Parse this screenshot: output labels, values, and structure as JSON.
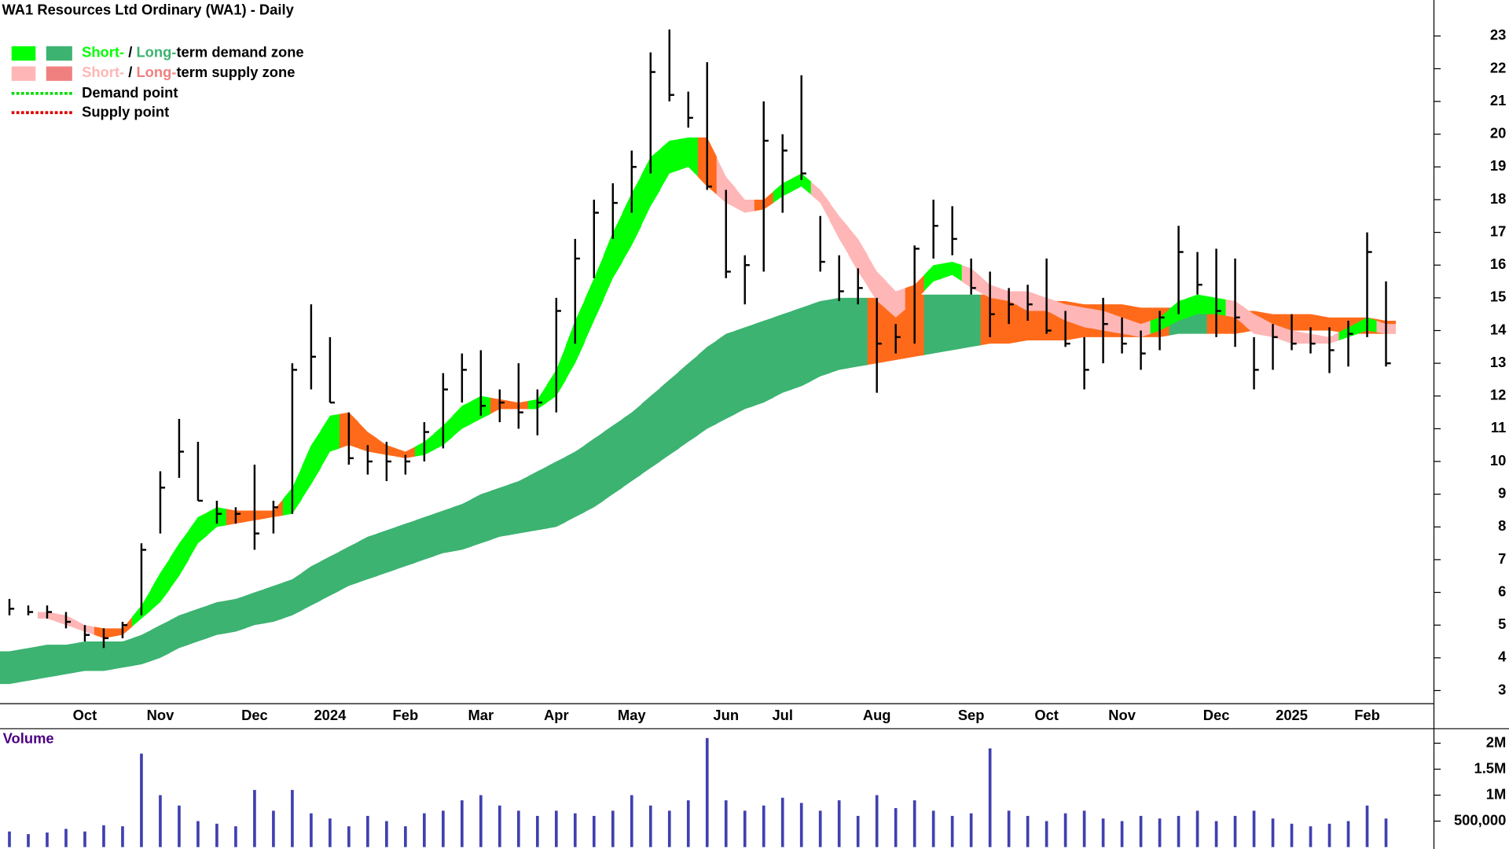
{
  "chart_data": [
    {
      "type": "ohlc",
      "title": "WA1 Resources Ltd Ordinary (WA1) - Daily",
      "categories": [
        null,
        null,
        null,
        null,
        "Oct",
        null,
        null,
        null,
        "Nov",
        null,
        null,
        null,
        null,
        "Dec",
        null,
        null,
        null,
        "2024",
        null,
        null,
        null,
        "Feb",
        null,
        null,
        null,
        "Mar",
        null,
        null,
        null,
        "Apr",
        null,
        null,
        null,
        "May",
        null,
        null,
        null,
        null,
        "Jun",
        null,
        null,
        "Jul",
        null,
        null,
        null,
        null,
        "Aug",
        null,
        null,
        null,
        null,
        "Sep",
        null,
        null,
        null,
        "Oct",
        null,
        null,
        null,
        "Nov",
        null,
        null,
        null,
        null,
        "Dec",
        null,
        null,
        null,
        "2025",
        null,
        null,
        null,
        "Feb",
        null
      ],
      "high": [
        5.8,
        5.6,
        5.6,
        5.4,
        5.0,
        4.9,
        5.1,
        7.5,
        9.7,
        11.3,
        10.6,
        8.8,
        8.6,
        9.9,
        8.8,
        13.0,
        14.8,
        13.8,
        11.5,
        10.5,
        10.6,
        10.2,
        11.2,
        12.7,
        13.3,
        13.4,
        12.2,
        13.0,
        12.2,
        15.0,
        16.8,
        18.0,
        18.5,
        19.5,
        22.5,
        23.2,
        21.3,
        22.2,
        18.3,
        16.3,
        21.0,
        20.0,
        21.8,
        17.5,
        16.3,
        15.9,
        15.0,
        14.2,
        16.6,
        18.0,
        17.8,
        16.2,
        15.8,
        15.3,
        15.4,
        16.2,
        14.6,
        13.8,
        15.0,
        14.4,
        14.0,
        14.6,
        17.2,
        16.4,
        16.5,
        16.2,
        13.8,
        14.2,
        14.5,
        14.1,
        14.1,
        14.3,
        17.0,
        15.5
      ],
      "low": [
        5.3,
        5.3,
        5.2,
        4.9,
        4.5,
        4.3,
        4.6,
        5.3,
        7.8,
        9.5,
        8.8,
        8.1,
        8.1,
        7.3,
        7.8,
        8.4,
        12.2,
        11.8,
        9.9,
        9.6,
        9.4,
        9.6,
        10.0,
        10.4,
        11.8,
        11.4,
        11.2,
        11.0,
        10.8,
        11.5,
        13.6,
        15.6,
        16.8,
        17.6,
        18.8,
        21.0,
        20.2,
        18.3,
        15.6,
        14.8,
        15.8,
        17.6,
        18.6,
        15.8,
        14.9,
        14.8,
        12.1,
        13.3,
        13.6,
        16.2,
        16.3,
        15.1,
        13.8,
        14.2,
        14.3,
        13.9,
        13.5,
        12.2,
        13.0,
        13.3,
        12.8,
        13.4,
        14.5,
        15.1,
        13.8,
        13.5,
        12.2,
        12.8,
        13.4,
        13.3,
        12.7,
        12.9,
        13.8,
        12.9
      ],
      "close": [
        5.5,
        5.4,
        5.4,
        5.1,
        4.7,
        4.6,
        5.0,
        7.3,
        9.2,
        10.3,
        8.8,
        8.4,
        8.4,
        7.8,
        8.6,
        12.8,
        13.2,
        11.8,
        10.1,
        10.0,
        10.0,
        10.0,
        10.9,
        12.2,
        12.8,
        11.7,
        11.8,
        11.5,
        11.8,
        14.6,
        16.2,
        17.6,
        17.9,
        19.0,
        21.9,
        21.2,
        20.5,
        18.4,
        15.8,
        16.0,
        19.8,
        19.5,
        18.8,
        16.1,
        15.2,
        15.3,
        13.6,
        13.8,
        16.5,
        17.2,
        16.8,
        15.3,
        14.5,
        14.8,
        14.8,
        14.0,
        13.6,
        12.8,
        14.2,
        13.6,
        13.3,
        14.4,
        16.4,
        15.4,
        14.6,
        14.4,
        12.8,
        13.8,
        13.6,
        13.6,
        13.4,
        13.9,
        16.4,
        13.0
      ],
      "candle_color": "#000000",
      "long_term_zone": {
        "upper": [
          4.2,
          4.3,
          4.4,
          4.4,
          4.5,
          4.5,
          4.5,
          4.7,
          5.0,
          5.3,
          5.5,
          5.7,
          5.8,
          6.0,
          6.2,
          6.4,
          6.8,
          7.1,
          7.4,
          7.7,
          7.9,
          8.1,
          8.3,
          8.5,
          8.7,
          9.0,
          9.2,
          9.4,
          9.7,
          10.0,
          10.3,
          10.7,
          11.1,
          11.5,
          12.0,
          12.5,
          13.0,
          13.5,
          13.9,
          14.1,
          14.3,
          14.5,
          14.7,
          14.9,
          15.0,
          15.0,
          15.0,
          15.0,
          15.1,
          15.1,
          15.1,
          15.1,
          15.1,
          15.0,
          15.0,
          14.9,
          14.9,
          14.8,
          14.8,
          14.8,
          14.7,
          14.7,
          14.7,
          14.7,
          14.6,
          14.6,
          14.6,
          14.5,
          14.5,
          14.5,
          14.4,
          14.4,
          14.4,
          14.3
        ],
        "lower": [
          3.2,
          3.3,
          3.4,
          3.5,
          3.6,
          3.6,
          3.7,
          3.8,
          4.0,
          4.3,
          4.5,
          4.7,
          4.8,
          5.0,
          5.1,
          5.3,
          5.6,
          5.9,
          6.2,
          6.4,
          6.6,
          6.8,
          7.0,
          7.2,
          7.3,
          7.5,
          7.7,
          7.8,
          7.9,
          8.0,
          8.3,
          8.6,
          9.0,
          9.4,
          9.8,
          10.2,
          10.6,
          11.0,
          11.3,
          11.6,
          11.8,
          12.1,
          12.3,
          12.6,
          12.8,
          12.9,
          13.0,
          13.1,
          13.2,
          13.3,
          13.4,
          13.5,
          13.6,
          13.6,
          13.7,
          13.7,
          13.7,
          13.8,
          13.8,
          13.8,
          13.8,
          13.8,
          13.9,
          13.9,
          13.9,
          13.9,
          14.0,
          14.0,
          14.0,
          14.0,
          14.0,
          13.9,
          13.9,
          13.9
        ],
        "colors": [
          "#3cb371",
          "#3cb371",
          "#3cb371",
          "#3cb371",
          "#3cb371",
          "#3cb371",
          "#3cb371",
          "#3cb371",
          "#3cb371",
          "#3cb371",
          "#3cb371",
          "#3cb371",
          "#3cb371",
          "#3cb371",
          "#3cb371",
          "#3cb371",
          "#3cb371",
          "#3cb371",
          "#3cb371",
          "#3cb371",
          "#3cb371",
          "#3cb371",
          "#3cb371",
          "#3cb371",
          "#3cb371",
          "#3cb371",
          "#3cb371",
          "#3cb371",
          "#3cb371",
          "#3cb371",
          "#3cb371",
          "#3cb371",
          "#3cb371",
          "#3cb371",
          "#3cb371",
          "#3cb371",
          "#3cb371",
          "#3cb371",
          "#3cb371",
          "#3cb371",
          "#3cb371",
          "#3cb371",
          "#3cb371",
          "#3cb371",
          "#3cb371",
          "#3cb371",
          "#ff6a1a",
          "#ff6a1a",
          "#ff6a1a",
          "#3cb371",
          "#3cb371",
          "#3cb371",
          "#ff6a1a",
          "#ff6a1a",
          "#ff6a1a",
          "#ff6a1a",
          "#ff6a1a",
          "#ff6a1a",
          "#ff6a1a",
          "#ff6a1a",
          "#ff6a1a",
          "#ff6a1a",
          "#3cb371",
          "#3cb371",
          "#ff6a1a",
          "#ff6a1a",
          "#ff6a1a",
          "#ff6a1a",
          "#ff6a1a",
          "#ff6a1a",
          "#ff6a1a",
          "#ff6a1a",
          "#ff6a1a",
          "#ff6a1a"
        ]
      },
      "short_term_zone": {
        "upper": [
          null,
          null,
          5.4,
          5.3,
          5.0,
          4.9,
          4.9,
          5.6,
          6.6,
          7.5,
          8.3,
          8.6,
          8.5,
          8.5,
          8.5,
          9.2,
          10.5,
          11.4,
          11.5,
          10.9,
          10.5,
          10.3,
          10.6,
          11.1,
          11.7,
          12.0,
          11.9,
          11.8,
          11.9,
          12.8,
          14.3,
          15.6,
          17.0,
          18.2,
          19.3,
          19.8,
          19.9,
          19.9,
          18.7,
          18.0,
          18.0,
          18.5,
          18.8,
          18.3,
          17.5,
          16.8,
          15.8,
          15.2,
          15.4,
          16.0,
          16.1,
          15.9,
          15.4,
          15.2,
          15.2,
          15.0,
          14.8,
          14.7,
          14.6,
          14.4,
          14.2,
          14.4,
          14.9,
          15.1,
          15.0,
          14.9,
          14.5,
          14.2,
          14.0,
          13.9,
          13.8,
          14.1,
          14.4,
          14.2
        ],
        "lower": [
          null,
          null,
          5.2,
          5.0,
          4.8,
          4.6,
          4.7,
          5.2,
          5.7,
          6.5,
          7.5,
          8.0,
          8.1,
          8.2,
          8.3,
          8.4,
          9.3,
          10.3,
          10.5,
          10.3,
          10.2,
          10.1,
          10.2,
          10.5,
          11.0,
          11.3,
          11.6,
          11.6,
          11.6,
          12.0,
          13.0,
          14.3,
          15.6,
          16.6,
          17.8,
          18.8,
          19.0,
          18.4,
          17.9,
          17.6,
          17.7,
          18.1,
          18.4,
          17.9,
          16.8,
          15.8,
          14.9,
          14.4,
          14.9,
          15.5,
          15.7,
          15.3,
          15.0,
          14.9,
          14.6,
          14.6,
          14.3,
          14.1,
          14.0,
          13.9,
          13.8,
          14.0,
          14.3,
          14.5,
          14.5,
          14.4,
          13.9,
          13.8,
          13.6,
          13.6,
          13.6,
          13.8,
          14.0,
          13.9
        ],
        "colors": [
          null,
          null,
          "#ffb6b6",
          "#ffb6b6",
          "#ffb6b6",
          "#ff6a1a",
          "#ff6a1a",
          "#00ff00",
          "#00ff00",
          "#00ff00",
          "#00ff00",
          "#00ff00",
          "#ff6a1a",
          "#ff6a1a",
          "#ff6a1a",
          "#00ff00",
          "#00ff00",
          "#00ff00",
          "#ff6a1a",
          "#ff6a1a",
          "#ff6a1a",
          "#ff6a1a",
          "#00ff00",
          "#00ff00",
          "#00ff00",
          "#00ff00",
          "#ff6a1a",
          "#ff6a1a",
          "#00ff00",
          "#00ff00",
          "#00ff00",
          "#00ff00",
          "#00ff00",
          "#00ff00",
          "#00ff00",
          "#00ff00",
          "#00ff00",
          "#ff6a1a",
          "#ffb6b6",
          "#ffb6b6",
          "#ff6a1a",
          "#00ff00",
          "#00ff00",
          "#ffb6b6",
          "#ffb6b6",
          "#ffb6b6",
          "#ffb6b6",
          "#ffb6b6",
          "#ff6a1a",
          "#00ff00",
          "#00ff00",
          "#ffb6b6",
          "#ffb6b6",
          "#ffb6b6",
          "#ffb6b6",
          "#ffb6b6",
          "#ffb6b6",
          "#ffb6b6",
          "#ffb6b6",
          "#ffb6b6",
          "#ffb6b6",
          "#00ff00",
          "#00ff00",
          "#00ff00",
          "#00ff00",
          "#ffb6b6",
          "#ffb6b6",
          "#ffb6b6",
          "#ffb6b6",
          "#ffb6b6",
          "#ffb6b6",
          "#00ff00",
          "#00ff00",
          "#ffb6b6"
        ]
      },
      "ylim": [
        2.6,
        24.1
      ],
      "yticks": [
        3,
        4,
        5,
        6,
        7,
        8,
        9,
        10,
        11,
        12,
        13,
        14,
        15,
        16,
        17,
        18,
        19,
        20,
        21,
        22,
        23
      ],
      "legend": [
        {
          "swatches": [
            "#00ff00",
            "#3cb371"
          ],
          "parts": [
            {
              "text": "Short-",
              "color": "#00ff00"
            },
            {
              "text": " / ",
              "color": "#000000"
            },
            {
              "text": "Long-",
              "color": "#3cb371"
            },
            {
              "text": "term demand zone",
              "color": "#000000"
            }
          ]
        },
        {
          "swatches": [
            "#ffb6b6",
            "#f08080"
          ],
          "parts": [
            {
              "text": "Short-",
              "color": "#ffb6b6"
            },
            {
              "text": " / ",
              "color": "#000000"
            },
            {
              "text": "Long-",
              "color": "#f08080"
            },
            {
              "text": "term supply zone",
              "color": "#000000"
            }
          ]
        },
        {
          "line_color": "#00dd00",
          "parts": [
            {
              "text": "Demand point",
              "color": "#000000"
            }
          ]
        },
        {
          "line_color": "#dd0000",
          "parts": [
            {
              "text": "Supply point",
              "color": "#000000"
            }
          ]
        }
      ]
    },
    {
      "type": "bar",
      "title": "Volume",
      "title_color": "#4b0082",
      "values": [
        300000,
        250000,
        280000,
        350000,
        300000,
        420000,
        400000,
        1800000,
        1000000,
        800000,
        500000,
        450000,
        400000,
        1100000,
        700000,
        1100000,
        650000,
        550000,
        400000,
        600000,
        500000,
        400000,
        650000,
        700000,
        900000,
        1000000,
        800000,
        700000,
        600000,
        700000,
        650000,
        600000,
        700000,
        1000000,
        800000,
        700000,
        900000,
        2100000,
        900000,
        700000,
        800000,
        950000,
        850000,
        700000,
        900000,
        600000,
        1000000,
        750000,
        900000,
        700000,
        600000,
        650000,
        1900000,
        700000,
        600000,
        500000,
        650000,
        700000,
        550000,
        500000,
        600000,
        550000,
        600000,
        700000,
        500000,
        600000,
        700000,
        550000,
        450000,
        400000,
        450000,
        500000,
        800000,
        550000
      ],
      "color": "#4040b0",
      "ylim": [
        0,
        2280000
      ],
      "yticks": [
        {
          "value": 500000,
          "label": "500,000"
        },
        {
          "value": 1000000,
          "label": "1M"
        },
        {
          "value": 1500000,
          "label": "1.5M"
        },
        {
          "value": 2000000,
          "label": "2M"
        }
      ]
    }
  ]
}
